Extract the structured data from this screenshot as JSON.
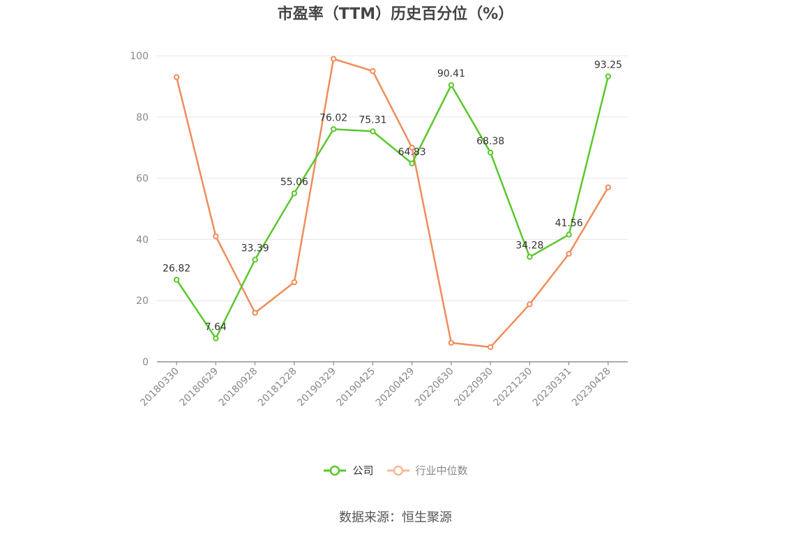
{
  "chart_data": {
    "type": "line",
    "title": "市盈率（TTM）历史百分位（%）",
    "xlabel": "",
    "ylabel": "",
    "ylim": [
      0,
      100
    ],
    "yticks": [
      0,
      20,
      40,
      60,
      80,
      100
    ],
    "grid": true,
    "legend_position": "bottom",
    "categories": [
      "20180330",
      "20180629",
      "20180928",
      "20181228",
      "20190329",
      "20190425",
      "20200429",
      "20220630",
      "20220930",
      "20221230",
      "20230331",
      "20230428"
    ],
    "series": [
      {
        "name": "公司",
        "color": "#5ac72c",
        "show_labels": true,
        "values": [
          26.82,
          7.64,
          33.39,
          55.06,
          76.02,
          75.31,
          64.83,
          90.41,
          68.38,
          34.28,
          41.56,
          93.25
        ]
      },
      {
        "name": "行业中位数",
        "color": "#f08c5a",
        "legend_color": "#f5b89a",
        "show_labels": false,
        "values": [
          93,
          41,
          16,
          26,
          99,
          95,
          70,
          6.2,
          4.8,
          18.8,
          35.3,
          57
        ]
      }
    ]
  },
  "source": "数据来源：恒生聚源"
}
